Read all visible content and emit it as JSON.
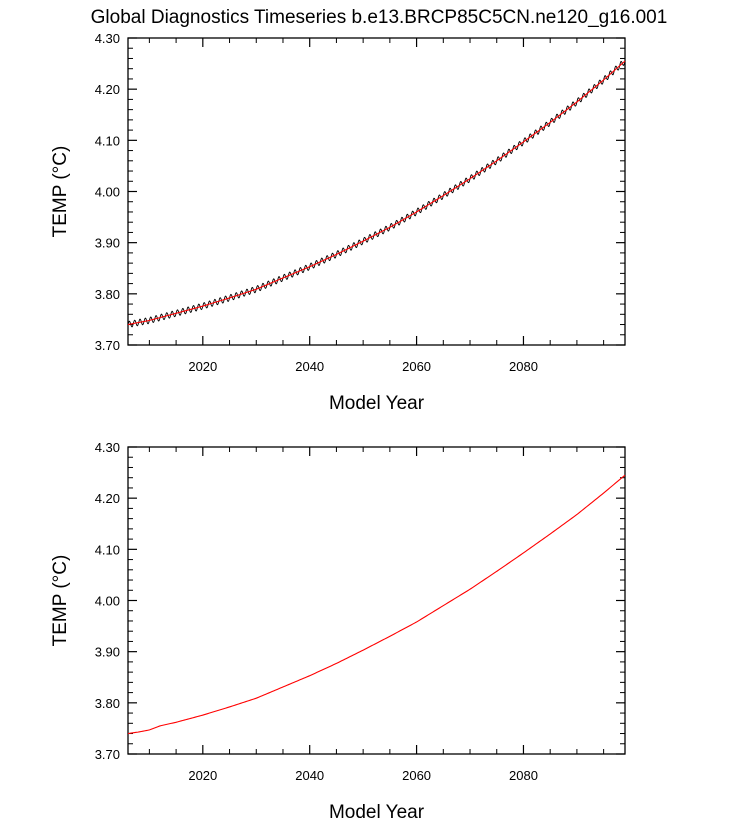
{
  "figure": {
    "title": "Global Diagnostics Timeseries b.e13.BRCP85C5CN.ne120_g16.001"
  },
  "colors": {
    "series_smooth": "#ff0000",
    "series_monthly": "#000000",
    "axes": "#000000"
  },
  "chart_data": [
    {
      "type": "line",
      "title": "",
      "xlabel": "Model Year",
      "ylabel": "TEMP (°C)",
      "xlim": [
        2006,
        2099
      ],
      "ylim": [
        3.7,
        4.3
      ],
      "x_ticks": [
        "2020",
        "2040",
        "2060",
        "2080"
      ],
      "y_ticks": [
        "3.70",
        "3.80",
        "3.90",
        "4.00",
        "4.10",
        "4.20",
        "4.30"
      ],
      "grid": false,
      "legend": "none",
      "series": [
        {
          "color": "#000000",
          "seasonal_cycle_amplitude": 0.006,
          "x": [
            2006,
            2010,
            2015,
            2020,
            2025,
            2030,
            2035,
            2040,
            2045,
            2050,
            2055,
            2060,
            2065,
            2070,
            2075,
            2080,
            2085,
            2090,
            2095,
            2099
          ],
          "y": [
            3.74,
            3.748,
            3.762,
            3.776,
            3.792,
            3.809,
            3.831,
            3.853,
            3.877,
            3.903,
            3.93,
            3.96,
            3.992,
            4.025,
            4.06,
            4.097,
            4.135,
            4.175,
            4.218,
            4.255
          ]
        },
        {
          "color": "#ff0000",
          "x": [
            2006,
            2010,
            2015,
            2020,
            2025,
            2030,
            2035,
            2040,
            2045,
            2050,
            2055,
            2060,
            2065,
            2070,
            2075,
            2080,
            2085,
            2090,
            2095,
            2099
          ],
          "y": [
            3.74,
            3.748,
            3.762,
            3.776,
            3.792,
            3.809,
            3.831,
            3.853,
            3.877,
            3.903,
            3.93,
            3.96,
            3.992,
            4.025,
            4.06,
            4.097,
            4.135,
            4.175,
            4.218,
            4.255
          ]
        }
      ]
    },
    {
      "type": "line",
      "title": "",
      "xlabel": "Model Year",
      "ylabel": "TEMP (°C)",
      "xlim": [
        2006,
        2099
      ],
      "ylim": [
        3.7,
        4.3
      ],
      "x_ticks": [
        "2020",
        "2040",
        "2060",
        "2080"
      ],
      "y_ticks": [
        "3.70",
        "3.80",
        "3.90",
        "4.00",
        "4.10",
        "4.20",
        "4.30"
      ],
      "grid": false,
      "legend": "none",
      "series": [
        {
          "color": "#ff0000",
          "x": [
            2006,
            2008,
            2010,
            2012,
            2015,
            2020,
            2025,
            2030,
            2035,
            2040,
            2045,
            2050,
            2055,
            2060,
            2065,
            2070,
            2075,
            2080,
            2085,
            2090,
            2095,
            2099
          ],
          "y": [
            3.74,
            3.743,
            3.747,
            3.755,
            3.762,
            3.776,
            3.792,
            3.809,
            3.831,
            3.853,
            3.877,
            3.903,
            3.93,
            3.958,
            3.99,
            4.022,
            4.057,
            4.093,
            4.13,
            4.168,
            4.21,
            4.245
          ]
        }
      ]
    }
  ]
}
